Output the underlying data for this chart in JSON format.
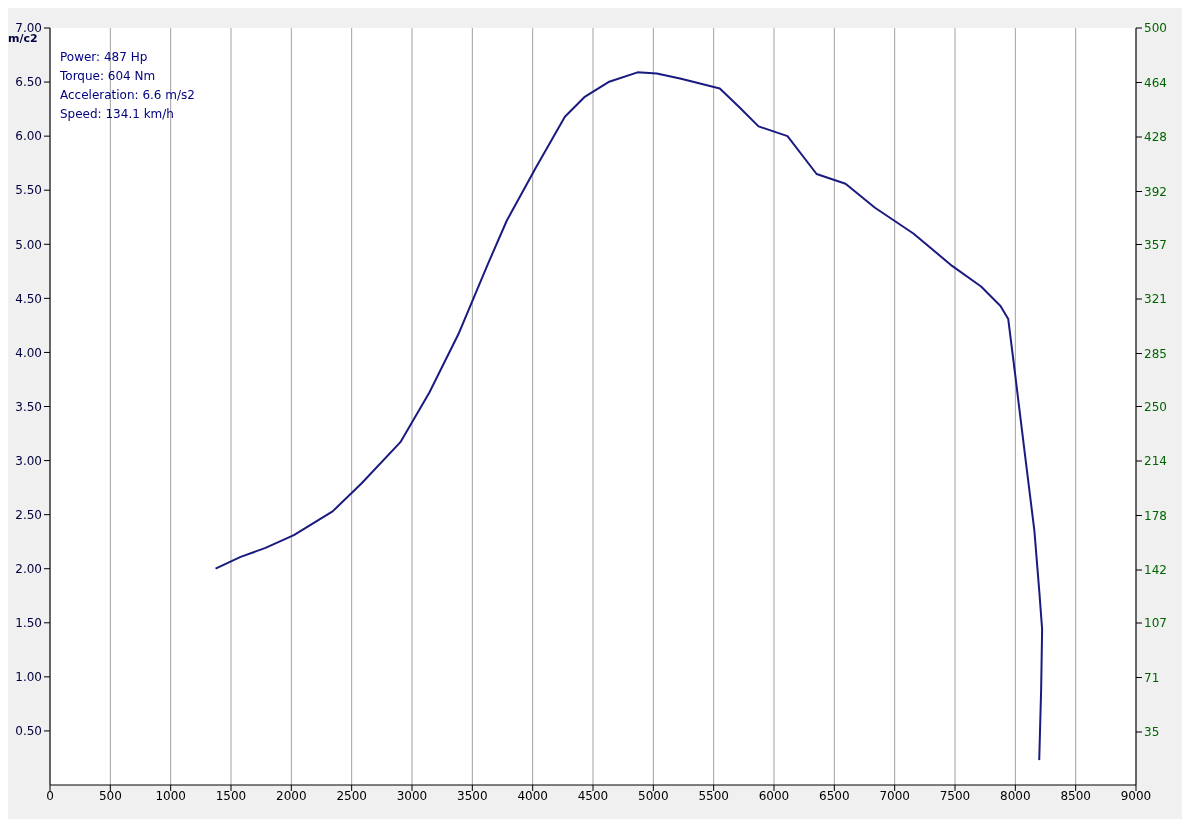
{
  "chart_data": {
    "type": "line",
    "ylabel": "m/c2",
    "annotations": [
      "Power: 487 Hp",
      "Torque: 604 Nm",
      "Acceleration: 6.6 m/s2",
      "Speed: 134.1 km/h"
    ],
    "x": [
      1372,
      1580,
      1781,
      2021,
      2342,
      2583,
      2904,
      3144,
      3385,
      3626,
      3786,
      4027,
      4267,
      4428,
      4628,
      4869,
      5029,
      5230,
      5551,
      5711,
      5872,
      6112,
      6353,
      6593,
      6834,
      7155,
      7476,
      7716,
      7877,
      7941,
      7997,
      8077,
      8158,
      8198,
      8222,
      8214,
      8198
    ],
    "series": [
      {
        "color": "#1a1a80",
        "values": [
          2.0,
          2.11,
          2.19,
          2.31,
          2.53,
          2.79,
          3.17,
          3.63,
          4.17,
          4.81,
          5.22,
          5.71,
          6.18,
          6.36,
          6.5,
          6.59,
          6.58,
          6.53,
          6.44,
          6.27,
          6.09,
          6.0,
          5.65,
          5.56,
          5.34,
          5.1,
          4.8,
          4.61,
          4.43,
          4.31,
          3.81,
          3.08,
          2.35,
          1.8,
          1.44,
          0.89,
          0.23
        ]
      }
    ],
    "xlim": [
      0,
      9000
    ],
    "xticks": [
      0,
      500,
      1000,
      1500,
      2000,
      2500,
      3000,
      3500,
      4000,
      4500,
      5000,
      5500,
      6000,
      6500,
      7000,
      7500,
      8000,
      8500,
      9000
    ],
    "ylim": [
      0,
      7
    ],
    "yticks": [
      {
        "value": 0.5,
        "label": "0.50"
      },
      {
        "value": 1,
        "label": "1.00"
      },
      {
        "value": 1.5,
        "label": "1.50"
      },
      {
        "value": 2,
        "label": "2.00"
      },
      {
        "value": 2.5,
        "label": "2.50"
      },
      {
        "value": 3,
        "label": "3.00"
      },
      {
        "value": 3.5,
        "label": "3.50"
      },
      {
        "value": 4,
        "label": "4.00"
      },
      {
        "value": 4.5,
        "label": "4.50"
      },
      {
        "value": 5,
        "label": "5.00"
      },
      {
        "value": 5.5,
        "label": "5.50"
      },
      {
        "value": 6,
        "label": "6.00"
      },
      {
        "value": 6.5,
        "label": "6.50"
      },
      {
        "value": 7,
        "label": "7.00"
      }
    ],
    "y2lim": [
      0,
      500
    ],
    "y2ticks": [
      35,
      71,
      107,
      142,
      178,
      214,
      250,
      285,
      321,
      357,
      392,
      428,
      464,
      500
    ],
    "grid": true,
    "marker": "none",
    "line_style": "solid"
  }
}
